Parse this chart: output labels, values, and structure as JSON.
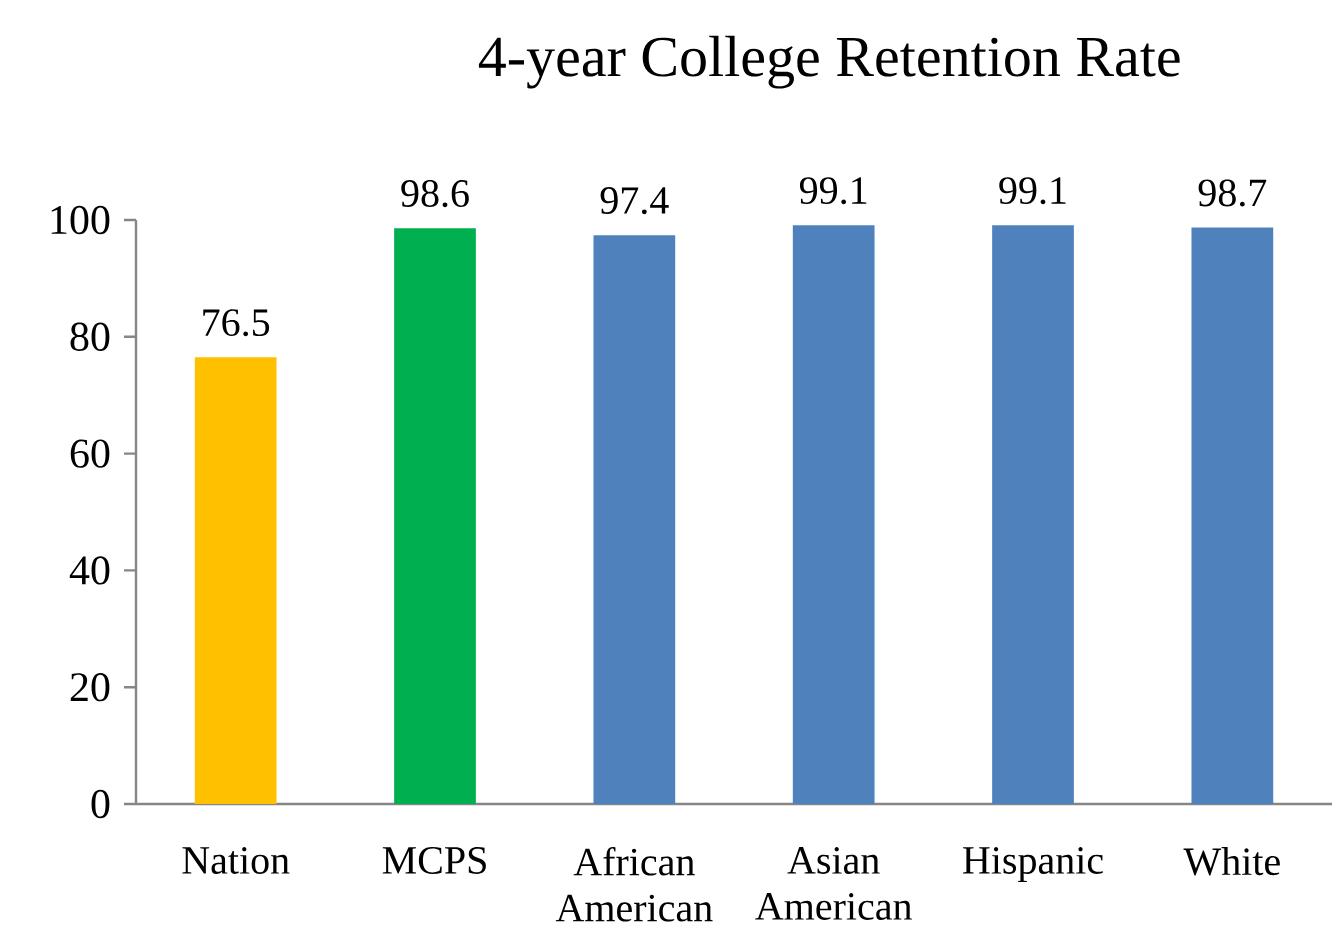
{
  "chart_data": {
    "type": "bar",
    "title": "4-year College Retention Rate",
    "categories": [
      "Nation",
      "MCPS",
      "African American",
      "Asian American",
      "Hispanic",
      "White"
    ],
    "values": [
      76.5,
      98.6,
      97.4,
      99.1,
      99.1,
      98.7
    ],
    "colors": [
      "#ffc000",
      "#00b050",
      "#4f81bd",
      "#4f81bd",
      "#4f81bd",
      "#4f81bd"
    ],
    "ylim": [
      0,
      100
    ],
    "yticks": [
      0,
      20,
      40,
      60,
      80,
      100
    ],
    "data_labels": true
  }
}
